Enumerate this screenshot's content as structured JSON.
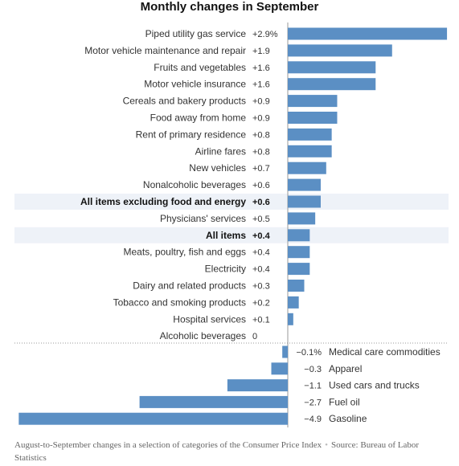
{
  "chart_data": {
    "type": "bar",
    "orientation": "horizontal",
    "title": "Monthly changes in September",
    "xlim": [
      -4.9,
      2.9
    ],
    "color": "#5b8fc4",
    "highlight_color": "#eef2f8",
    "positive": [
      {
        "label": "Piped utility gas service",
        "value": 2.9,
        "value_label": "+2.9%"
      },
      {
        "label": "Motor vehicle maintenance and repair",
        "value": 1.9,
        "value_label": "+1.9"
      },
      {
        "label": "Fruits and vegetables",
        "value": 1.6,
        "value_label": "+1.6"
      },
      {
        "label": "Motor vehicle insurance",
        "value": 1.6,
        "value_label": "+1.6"
      },
      {
        "label": "Cereals and bakery products",
        "value": 0.9,
        "value_label": "+0.9"
      },
      {
        "label": "Food away from home",
        "value": 0.9,
        "value_label": "+0.9"
      },
      {
        "label": "Rent of primary residence",
        "value": 0.8,
        "value_label": "+0.8"
      },
      {
        "label": "Airline fares",
        "value": 0.8,
        "value_label": "+0.8"
      },
      {
        "label": "New vehicles",
        "value": 0.7,
        "value_label": "+0.7"
      },
      {
        "label": "Nonalcoholic beverages",
        "value": 0.6,
        "value_label": "+0.6"
      },
      {
        "label": "All items excluding food and energy",
        "value": 0.6,
        "value_label": "+0.6",
        "highlight": true
      },
      {
        "label": "Physicians' services",
        "value": 0.5,
        "value_label": "+0.5"
      },
      {
        "label": "All items",
        "value": 0.4,
        "value_label": "+0.4",
        "highlight": true
      },
      {
        "label": "Meats, poultry, fish and eggs",
        "value": 0.4,
        "value_label": "+0.4"
      },
      {
        "label": "Electricity",
        "value": 0.4,
        "value_label": "+0.4"
      },
      {
        "label": "Dairy and related products",
        "value": 0.3,
        "value_label": "+0.3"
      },
      {
        "label": "Tobacco and smoking products",
        "value": 0.2,
        "value_label": "+0.2"
      },
      {
        "label": "Hospital services",
        "value": 0.1,
        "value_label": "+0.1"
      },
      {
        "label": "Alcoholic beverages",
        "value": 0,
        "value_label": "0"
      }
    ],
    "negative": [
      {
        "label": "Medical care commodities",
        "value": -0.1,
        "value_label": "−0.1%"
      },
      {
        "label": "Apparel",
        "value": -0.3,
        "value_label": "−0.3"
      },
      {
        "label": "Used cars and trucks",
        "value": -1.1,
        "value_label": "−1.1"
      },
      {
        "label": "Fuel oil",
        "value": -2.7,
        "value_label": "−2.7"
      },
      {
        "label": "Gasoline",
        "value": -4.9,
        "value_label": "−4.9"
      }
    ]
  },
  "footnote": {
    "text": "August-to-September changes in a selection of categories of the Consumer Price Index",
    "separator": "•",
    "source": "Source: Bureau of Labor Statistics"
  }
}
